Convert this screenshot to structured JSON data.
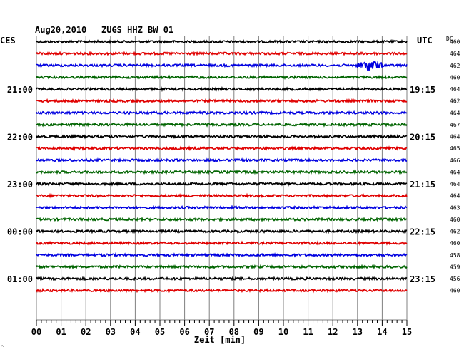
{
  "header": {
    "date": "Aug20,2010",
    "station": "ZUGS HHZ BW 01",
    "left_tz": "CES",
    "right_tz": "UTC",
    "dc_label": "DC"
  },
  "chart_data": {
    "type": "line",
    "title": "Aug20,2010   ZUGS HHZ BW 01",
    "xlabel": "Zeit [min]",
    "xlim": [
      0,
      15
    ],
    "x_ticks": [
      "00",
      "01",
      "02",
      "03",
      "04",
      "05",
      "06",
      "07",
      "08",
      "09",
      "10",
      "11",
      "12",
      "13",
      "14",
      "15"
    ],
    "grid": true,
    "trace_colors": [
      "#000000",
      "#e00000",
      "#0000e0",
      "#006400"
    ],
    "left_time_labels": [
      {
        "text": "21:00",
        "trace": 4
      },
      {
        "text": "22:00",
        "trace": 8
      },
      {
        "text": "23:00",
        "trace": 12
      },
      {
        "text": "00:00",
        "trace": 16
      },
      {
        "text": "01:00",
        "trace": 20
      }
    ],
    "right_time_labels": [
      {
        "text": "19:15",
        "trace": 4
      },
      {
        "text": "20:15",
        "trace": 8
      },
      {
        "text": "21:15",
        "trace": 12
      },
      {
        "text": "22:15",
        "trace": 16
      },
      {
        "text": "23:15",
        "trace": 20
      }
    ],
    "dc_offsets": [
      "460",
      "464",
      "462",
      "460",
      "464",
      "462",
      "464",
      "467",
      "464",
      "465",
      "466",
      "464",
      "464",
      "464",
      "463",
      "460",
      "462",
      "460",
      "458",
      "459",
      "456",
      "460"
    ],
    "event": {
      "trace": 2,
      "start_min": 12.8,
      "end_min": 14.0,
      "peak_min": 13.5
    }
  }
}
